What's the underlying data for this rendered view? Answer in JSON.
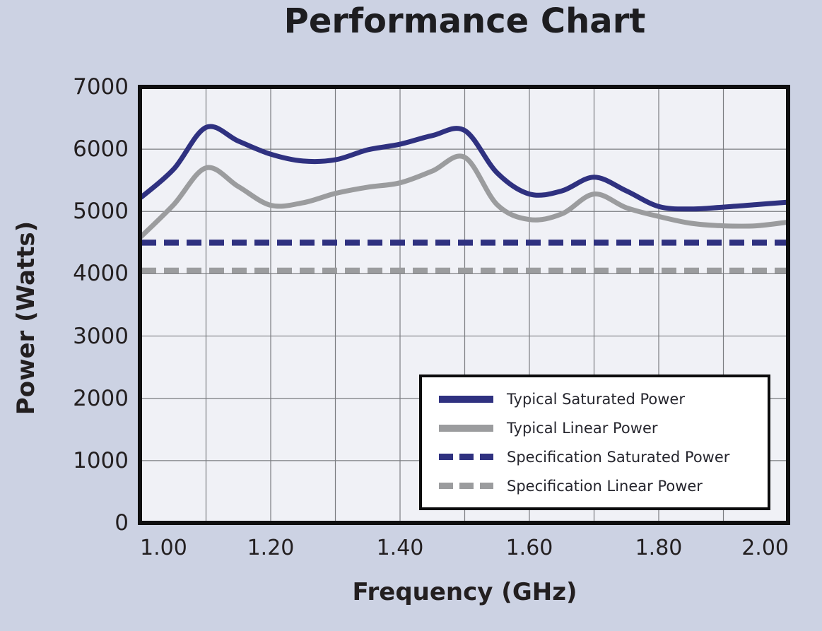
{
  "page": {
    "background_color": "#ccd2e3"
  },
  "title": "Performance Chart",
  "chart_data": {
    "type": "line",
    "title": "Performance Chart",
    "xlabel": "Frequency (GHz)",
    "ylabel": "Power (Watts)",
    "xlim": [
      1.0,
      2.0
    ],
    "ylim": [
      0,
      7000
    ],
    "grid": {
      "on": true,
      "x_step": 0.1,
      "y_step": 1000,
      "color": "#7b7d81"
    },
    "plot_background": "#f0f1f6",
    "border_color": "#0f0f10",
    "x_tick_labels": [
      "1.00",
      "1.20",
      "1.40",
      "1.60",
      "1.80",
      "2.00"
    ],
    "x_tick_values": [
      1.0,
      1.2,
      1.4,
      1.6,
      1.8,
      2.0
    ],
    "y_tick_labels": [
      "0",
      "1000",
      "2000",
      "3000",
      "4000",
      "5000",
      "6000",
      "7000"
    ],
    "y_tick_values": [
      0,
      1000,
      2000,
      3000,
      4000,
      5000,
      6000,
      7000
    ],
    "legend_position": "inside-bottom-right",
    "x": [
      1.0,
      1.05,
      1.1,
      1.15,
      1.2,
      1.25,
      1.3,
      1.35,
      1.4,
      1.45,
      1.5,
      1.55,
      1.6,
      1.65,
      1.7,
      1.75,
      1.8,
      1.85,
      1.9,
      1.95,
      2.0
    ],
    "series": [
      {
        "name": "Typical Saturated Power",
        "color": "#2f3180",
        "line_style": "solid",
        "values": [
          5230,
          5680,
          6350,
          6130,
          5920,
          5810,
          5830,
          5990,
          6080,
          6220,
          6300,
          5620,
          5280,
          5330,
          5550,
          5330,
          5080,
          5040,
          5070,
          5110,
          5150
        ]
      },
      {
        "name": "Typical Linear Power",
        "color": "#9b9c9e",
        "line_style": "solid",
        "values": [
          4600,
          5110,
          5700,
          5400,
          5100,
          5140,
          5290,
          5390,
          5460,
          5650,
          5870,
          5110,
          4870,
          4960,
          5280,
          5060,
          4920,
          4810,
          4770,
          4770,
          4830
        ]
      },
      {
        "name": "Specification Saturated Power",
        "color": "#2f3180",
        "line_style": "dashed",
        "constant_value": 4500
      },
      {
        "name": "Specification Linear Power",
        "color": "#9b9c9e",
        "line_style": "dashed",
        "constant_value": 4050
      }
    ]
  }
}
